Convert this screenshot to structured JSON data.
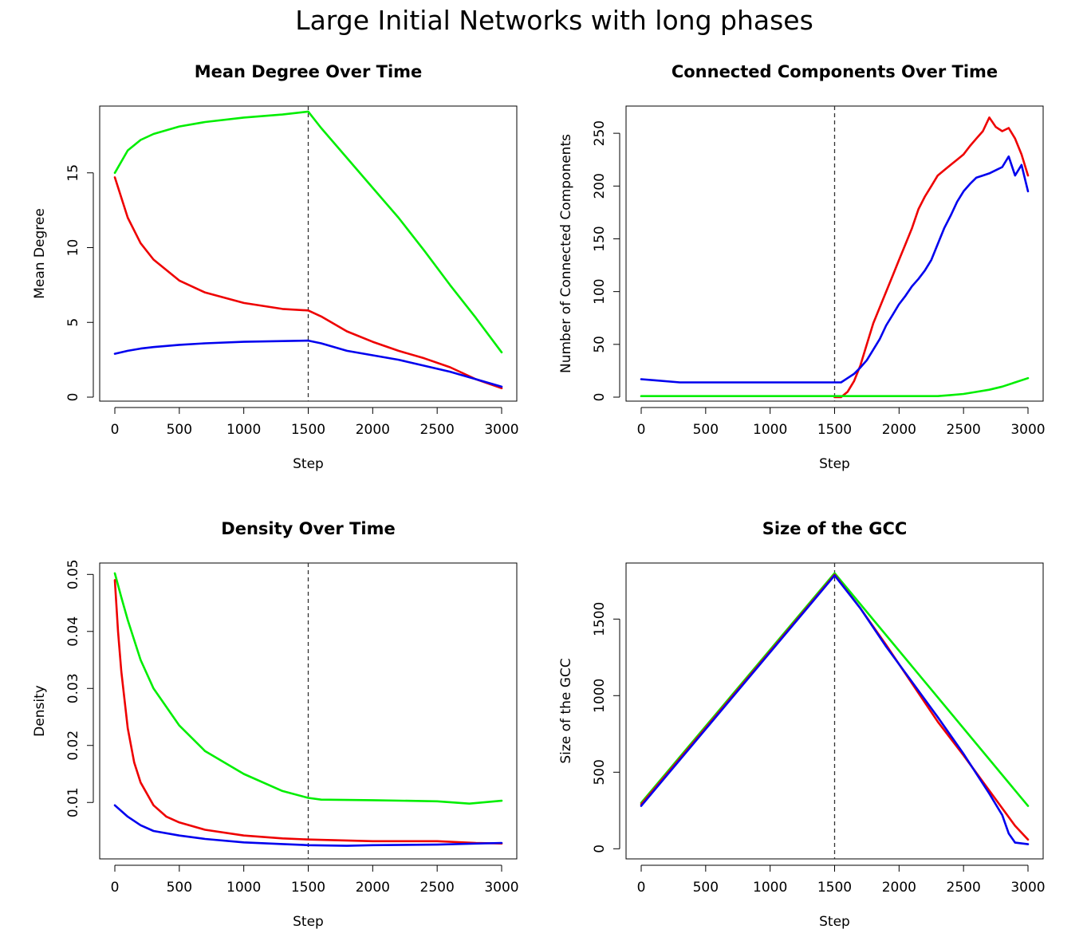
{
  "figure": {
    "title": "Large Initial Networks with long phases",
    "colors": {
      "green": "#00ee00",
      "red": "#ee0000",
      "blue": "#0000ee",
      "phase_line": "#333333"
    }
  },
  "chart_data": [
    {
      "type": "line",
      "title": "Mean Degree Over Time",
      "xlabel": "Step",
      "ylabel": "Mean Degree",
      "xlim": [
        0,
        3000
      ],
      "ylim": [
        0,
        19.2
      ],
      "xticks": [
        0,
        500,
        1000,
        1500,
        2000,
        2500,
        3000
      ],
      "yticks": [
        0,
        5,
        10,
        15
      ],
      "vline": 1500,
      "grid": false,
      "series": [
        {
          "color": "green",
          "x": [
            0,
            100,
            200,
            300,
            500,
            700,
            1000,
            1300,
            1500,
            1600,
            1800,
            2000,
            2200,
            2400,
            2600,
            2800,
            3000
          ],
          "y": [
            15.0,
            16.5,
            17.2,
            17.6,
            18.1,
            18.4,
            18.7,
            18.9,
            19.1,
            18.0,
            16.0,
            14.0,
            12.0,
            9.8,
            7.5,
            5.3,
            3.0
          ]
        },
        {
          "color": "red",
          "x": [
            0,
            100,
            200,
            300,
            500,
            700,
            1000,
            1300,
            1500,
            1600,
            1800,
            2000,
            2200,
            2400,
            2600,
            2800,
            3000
          ],
          "y": [
            14.7,
            12.0,
            10.3,
            9.2,
            7.8,
            7.0,
            6.3,
            5.9,
            5.8,
            5.4,
            4.4,
            3.7,
            3.1,
            2.6,
            2.0,
            1.2,
            0.6
          ]
        },
        {
          "color": "blue",
          "x": [
            0,
            100,
            200,
            300,
            500,
            700,
            1000,
            1300,
            1500,
            1600,
            1800,
            2000,
            2200,
            2400,
            2600,
            2800,
            3000
          ],
          "y": [
            2.9,
            3.1,
            3.25,
            3.35,
            3.5,
            3.6,
            3.7,
            3.75,
            3.78,
            3.6,
            3.1,
            2.8,
            2.5,
            2.1,
            1.7,
            1.2,
            0.7
          ]
        }
      ]
    },
    {
      "type": "line",
      "title": "Connected Components Over Time",
      "xlabel": "Step",
      "ylabel": "Number of Connected Components",
      "xlim": [
        0,
        3000
      ],
      "ylim": [
        0,
        272
      ],
      "xticks": [
        0,
        500,
        1000,
        1500,
        2000,
        2500,
        3000
      ],
      "yticks": [
        0,
        50,
        100,
        150,
        200,
        250
      ],
      "vline": 1500,
      "grid": false,
      "series": [
        {
          "color": "red",
          "x": [
            1500,
            1550,
            1600,
            1650,
            1700,
            1750,
            1800,
            1850,
            1900,
            1950,
            2000,
            2050,
            2100,
            2150,
            2200,
            2250,
            2300,
            2350,
            2400,
            2450,
            2500,
            2550,
            2600,
            2650,
            2700,
            2750,
            2800,
            2850,
            2900,
            2950,
            3000
          ],
          "y": [
            0,
            0,
            5,
            15,
            30,
            50,
            70,
            85,
            100,
            115,
            130,
            145,
            160,
            178,
            190,
            200,
            210,
            215,
            220,
            225,
            230,
            238,
            245,
            252,
            265,
            256,
            252,
            255,
            245,
            230,
            210
          ]
        },
        {
          "color": "blue",
          "x": [
            0,
            100,
            300,
            500,
            1000,
            1500,
            1550,
            1600,
            1650,
            1700,
            1750,
            1800,
            1850,
            1900,
            1950,
            2000,
            2050,
            2100,
            2150,
            2200,
            2250,
            2300,
            2350,
            2400,
            2450,
            2500,
            2550,
            2600,
            2650,
            2700,
            2750,
            2800,
            2850,
            2900,
            2950,
            3000
          ],
          "y": [
            17,
            16,
            14,
            14,
            14,
            14,
            14,
            18,
            22,
            28,
            35,
            45,
            55,
            68,
            78,
            88,
            96,
            105,
            112,
            120,
            130,
            145,
            160,
            172,
            185,
            195,
            202,
            208,
            210,
            212,
            215,
            218,
            228,
            210,
            220,
            195
          ]
        },
        {
          "color": "green",
          "x": [
            0,
            500,
            1000,
            1500,
            2000,
            2300,
            2400,
            2500,
            2600,
            2700,
            2800,
            2900,
            3000
          ],
          "y": [
            1,
            1,
            1,
            1,
            1,
            1,
            2,
            3,
            5,
            7,
            10,
            14,
            18
          ]
        }
      ]
    },
    {
      "type": "line",
      "title": "Density Over Time",
      "xlabel": "Step",
      "ylabel": "Density",
      "xlim": [
        0,
        3000
      ],
      "ylim": [
        0.0008,
        0.0513
      ],
      "xticks": [
        0,
        500,
        1000,
        1500,
        2000,
        2500,
        3000
      ],
      "yticks": [
        0.01,
        0.02,
        0.03,
        0.04,
        0.05
      ],
      "vline": 1500,
      "grid": false,
      "series": [
        {
          "color": "green",
          "x": [
            0,
            50,
            100,
            200,
            300,
            500,
            700,
            1000,
            1300,
            1500,
            1600,
            2000,
            2500,
            2750,
            3000
          ],
          "y": [
            0.0502,
            0.046,
            0.042,
            0.035,
            0.03,
            0.0235,
            0.019,
            0.015,
            0.012,
            0.0108,
            0.0105,
            0.0104,
            0.0102,
            0.0098,
            0.0103
          ]
        },
        {
          "color": "red",
          "x": [
            0,
            25,
            50,
            100,
            150,
            200,
            300,
            400,
            500,
            700,
            1000,
            1300,
            1500,
            2000,
            2500,
            2800,
            3000
          ],
          "y": [
            0.049,
            0.04,
            0.033,
            0.023,
            0.017,
            0.0135,
            0.0095,
            0.0075,
            0.0065,
            0.0052,
            0.0042,
            0.0037,
            0.0035,
            0.0032,
            0.0032,
            0.0029,
            0.0028
          ]
        },
        {
          "color": "blue",
          "x": [
            0,
            100,
            200,
            300,
            500,
            700,
            1000,
            1300,
            1500,
            1800,
            2000,
            2500,
            3000
          ],
          "y": [
            0.0095,
            0.0075,
            0.006,
            0.005,
            0.0042,
            0.0036,
            0.003,
            0.0027,
            0.0025,
            0.0024,
            0.0025,
            0.0026,
            0.0029
          ]
        }
      ]
    },
    {
      "type": "line",
      "title": "Size of the GCC",
      "xlabel": "Step",
      "ylabel": "Size of the GCC",
      "xlim": [
        0,
        3000
      ],
      "ylim": [
        -40,
        1840
      ],
      "xticks": [
        0,
        500,
        1000,
        1500,
        2000,
        2500,
        3000
      ],
      "yticks": [
        0,
        500,
        1000,
        1500
      ],
      "vline": 1500,
      "grid": false,
      "series": [
        {
          "color": "green",
          "x": [
            0,
            1500,
            3000
          ],
          "y": [
            300,
            1800,
            280
          ]
        },
        {
          "color": "red",
          "x": [
            0,
            1500,
            1700,
            1900,
            2100,
            2300,
            2500,
            2700,
            2900,
            3000
          ],
          "y": [
            290,
            1790,
            1570,
            1330,
            1080,
            830,
            610,
            380,
            150,
            60
          ]
        },
        {
          "color": "blue",
          "x": [
            0,
            1500,
            1700,
            1900,
            2100,
            2300,
            2500,
            2700,
            2800,
            2850,
            2900,
            3000
          ],
          "y": [
            280,
            1785,
            1570,
            1320,
            1090,
            860,
            620,
            360,
            220,
            100,
            40,
            30
          ]
        }
      ]
    }
  ]
}
